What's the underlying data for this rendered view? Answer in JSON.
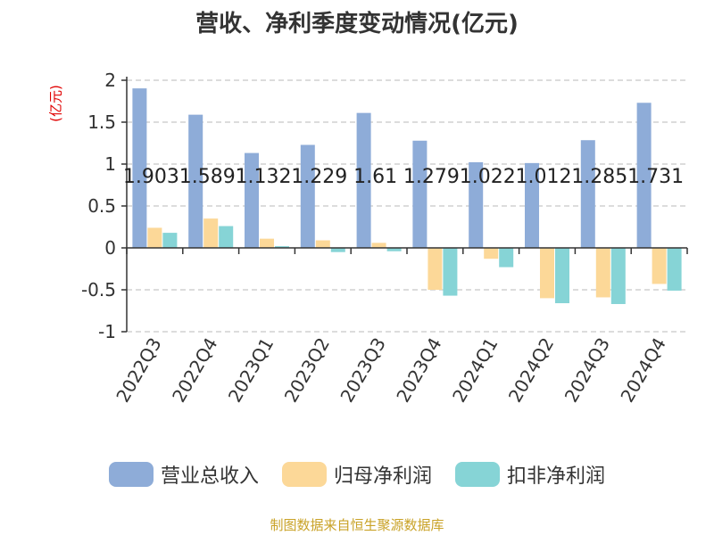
{
  "title": "营收、净利季度变动情况(亿元)",
  "source": "制图数据来自恒生聚源数据库",
  "colors": {
    "revenue": "#8eacd8",
    "net_profit": "#fcd898",
    "deducted_profit": "#86d4d6",
    "grid": "#c8c8c8",
    "axis": "#333333"
  },
  "chart_data": {
    "type": "bar",
    "title": "营收、净利季度变动情况(亿元)",
    "ylabel": "(亿元)",
    "ylim": [
      -1,
      2
    ],
    "yticks": [
      -1,
      -0.5,
      0,
      0.5,
      1,
      1.5,
      2
    ],
    "ytick_labels": [
      "-1",
      "-0.5",
      "0",
      "0.5",
      "1",
      "1.5",
      "2"
    ],
    "grid": true,
    "legend_position": "bottom",
    "categories": [
      "2022Q3",
      "2022Q4",
      "2023Q1",
      "2023Q2",
      "2023Q3",
      "2023Q4",
      "2024Q1",
      "2024Q2",
      "2024Q3",
      "2024Q4"
    ],
    "series": [
      {
        "name": "营业总收入",
        "color": "#8eacd8",
        "values": [
          1.903,
          1.589,
          1.132,
          1.229,
          1.61,
          1.279,
          1.022,
          1.012,
          1.285,
          1.731
        ],
        "labels": [
          "1.903",
          "1.589",
          "1.132",
          "1.229",
          "1.61",
          "1.279",
          "1.022",
          "1.012",
          "1.285",
          "1.731"
        ]
      },
      {
        "name": "归母净利润",
        "color": "#fcd898",
        "values": [
          0.24,
          0.35,
          0.11,
          0.09,
          0.06,
          -0.5,
          -0.13,
          -0.6,
          -0.59,
          -0.43
        ]
      },
      {
        "name": "扣非净利润",
        "color": "#86d4d6",
        "values": [
          0.18,
          0.26,
          0.02,
          -0.05,
          -0.04,
          -0.57,
          -0.23,
          -0.66,
          -0.67,
          -0.51
        ]
      }
    ]
  }
}
